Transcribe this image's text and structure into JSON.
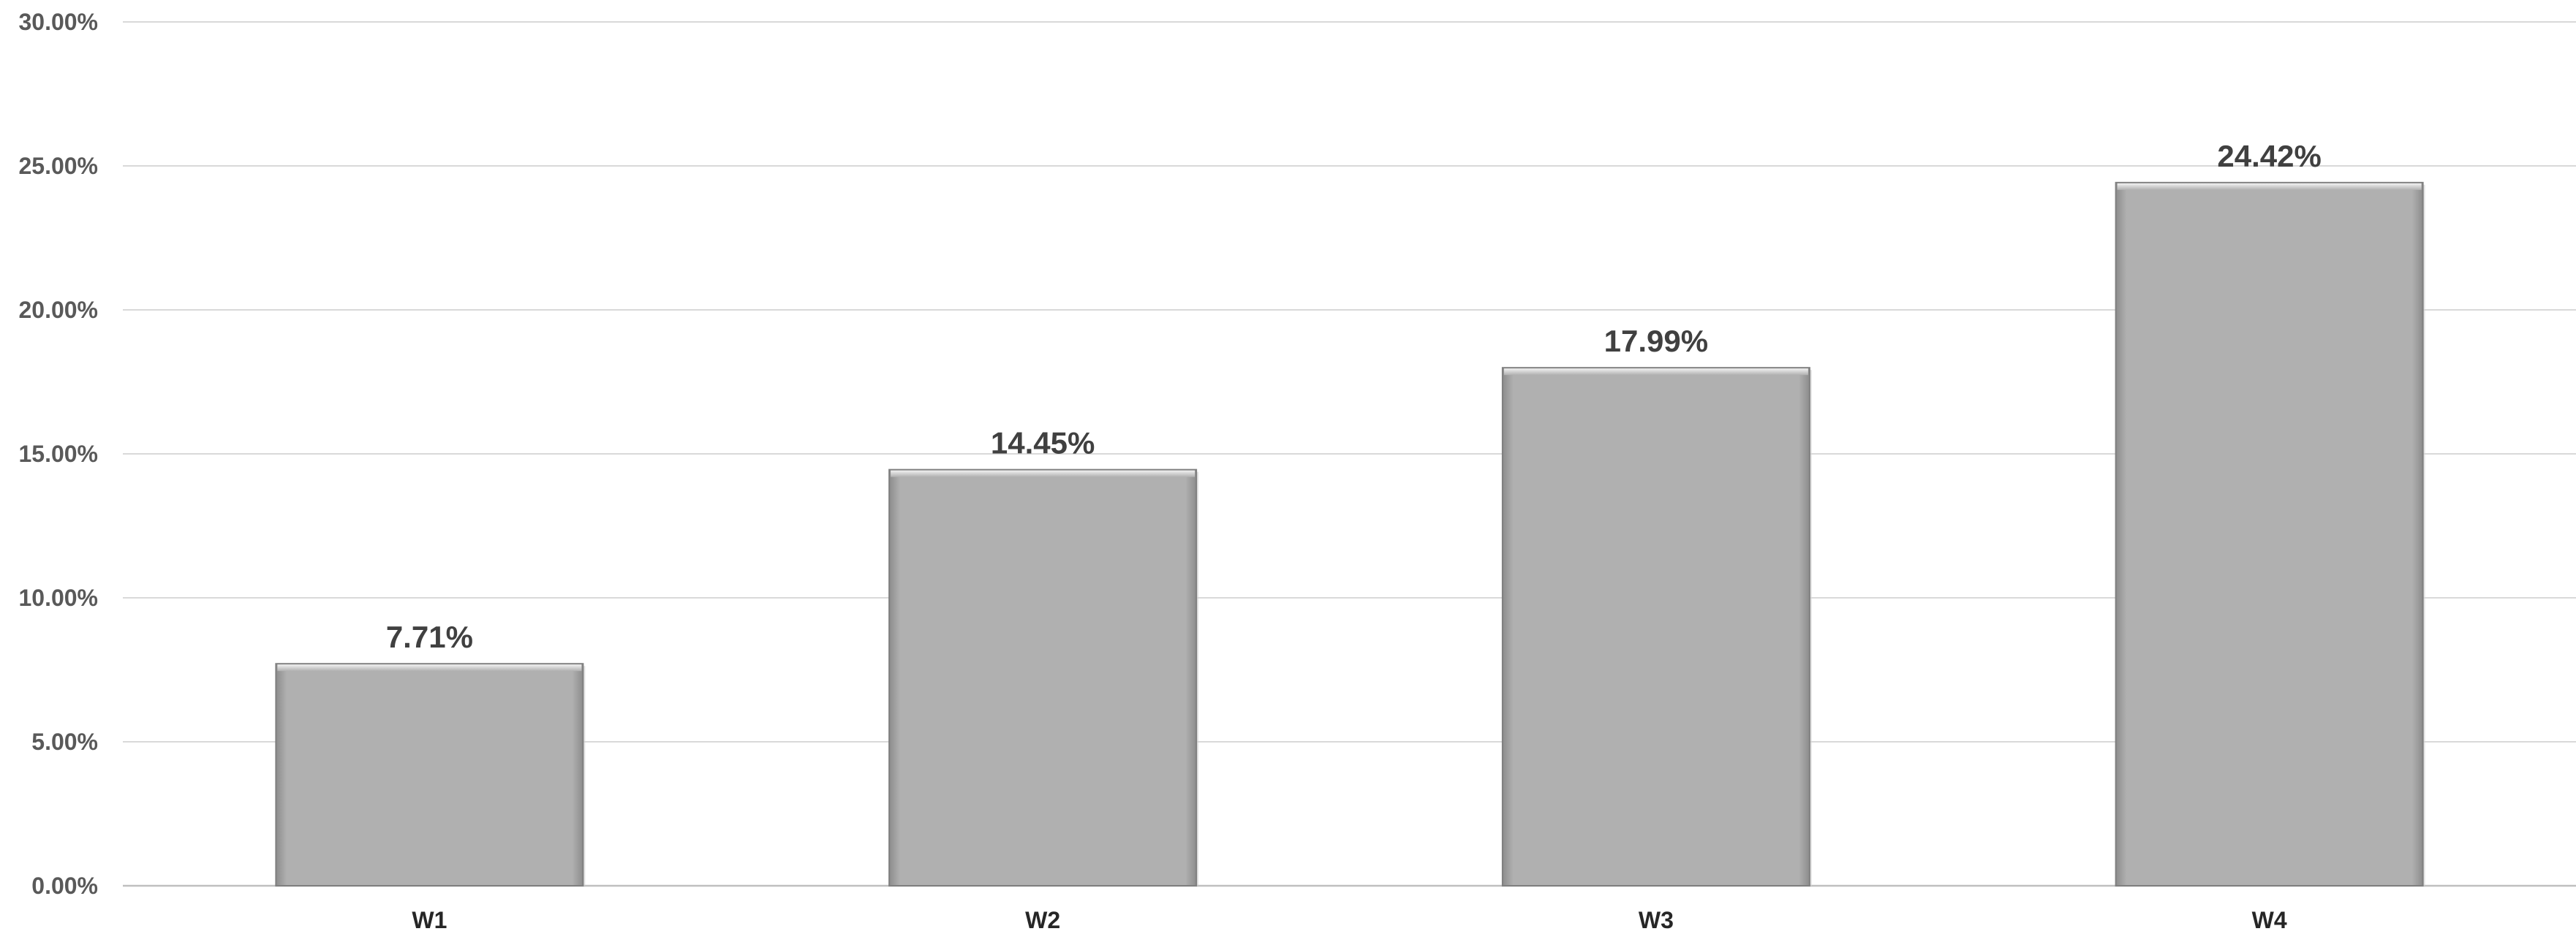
{
  "chart_data": {
    "type": "bar",
    "title": "",
    "xlabel": "",
    "ylabel": "",
    "categories": [
      "W1",
      "W2",
      "W3",
      "W4"
    ],
    "values": [
      7.71,
      14.45,
      17.99,
      24.42
    ],
    "data_labels": [
      "7.71%",
      "14.45%",
      "17.99%",
      "24.42%"
    ],
    "ylim": [
      0,
      30
    ],
    "y_ticks": [
      0,
      5,
      10,
      15,
      20,
      25,
      30
    ],
    "y_tick_labels": [
      "0.00%",
      "5.00%",
      "10.00%",
      "15.00%",
      "20.00%",
      "25.00%",
      "30.00%"
    ],
    "grid": true,
    "legend": "none",
    "colors": {
      "bar": "#aeaeae",
      "bar_edge": "#7f7f7f",
      "grid": "#d9d9d9",
      "axis": "#bfbfbf"
    }
  }
}
